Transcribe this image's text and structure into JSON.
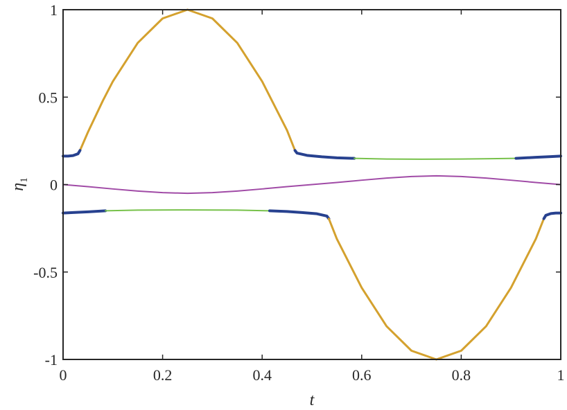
{
  "chart_data": {
    "type": "line",
    "xlabel": "t",
    "ylabel": {
      "symbol": "η",
      "subscript": "1"
    },
    "xlim": [
      0,
      1
    ],
    "ylim": [
      -1,
      1
    ],
    "xticks": [
      0,
      0.2,
      0.4,
      0.6,
      0.8,
      1
    ],
    "xtick_labels": [
      "0",
      "0.2",
      "0.4",
      "0.6",
      "0.8",
      "1"
    ],
    "yticks": [
      -1,
      -0.5,
      0,
      0.5,
      1
    ],
    "ytick_labels": [
      "-1",
      "-0.5",
      "0",
      "0.5",
      "1"
    ],
    "grid": false,
    "legend": "none",
    "colors": {
      "gold": "#d4a12e",
      "blue": "#27418f",
      "green": "#77c14a",
      "purple": "#a04aa6",
      "axis": "#262626"
    },
    "series": [
      {
        "color": "gold",
        "width": 3,
        "points": [
          [
            0.034,
            0.195
          ],
          [
            0.05,
            0.3
          ],
          [
            0.08,
            0.48
          ],
          [
            0.1,
            0.59
          ],
          [
            0.15,
            0.81
          ],
          [
            0.2,
            0.95
          ],
          [
            0.25,
            1.0
          ],
          [
            0.3,
            0.95
          ],
          [
            0.35,
            0.81
          ],
          [
            0.4,
            0.59
          ],
          [
            0.45,
            0.31
          ],
          [
            0.466,
            0.195
          ]
        ]
      },
      {
        "color": "blue",
        "width": 4,
        "points": [
          [
            0,
            0.163
          ],
          [
            0.01,
            0.163
          ],
          [
            0.02,
            0.166
          ],
          [
            0.03,
            0.176
          ],
          [
            0.034,
            0.195
          ]
        ]
      },
      {
        "color": "blue",
        "width": 4,
        "points": [
          [
            0.466,
            0.195
          ],
          [
            0.47,
            0.18
          ],
          [
            0.49,
            0.167
          ],
          [
            0.52,
            0.159
          ],
          [
            0.55,
            0.153
          ],
          [
            0.585,
            0.15
          ]
        ]
      },
      {
        "color": "green",
        "width": 2,
        "points": [
          [
            0.585,
            0.15
          ],
          [
            0.65,
            0.146
          ],
          [
            0.72,
            0.145
          ],
          [
            0.8,
            0.146
          ],
          [
            0.86,
            0.148
          ],
          [
            0.91,
            0.15
          ]
        ]
      },
      {
        "color": "blue",
        "width": 4,
        "points": [
          [
            0.91,
            0.15
          ],
          [
            0.95,
            0.156
          ],
          [
            0.98,
            0.16
          ],
          [
            1.0,
            0.163
          ]
        ]
      },
      {
        "color": "purple",
        "width": 2,
        "points": [
          [
            0,
            0
          ],
          [
            0.05,
            -0.012
          ],
          [
            0.1,
            -0.025
          ],
          [
            0.15,
            -0.037
          ],
          [
            0.2,
            -0.046
          ],
          [
            0.25,
            -0.05
          ],
          [
            0.3,
            -0.046
          ],
          [
            0.35,
            -0.037
          ],
          [
            0.4,
            -0.025
          ],
          [
            0.45,
            -0.012
          ],
          [
            0.5,
            0
          ],
          [
            0.55,
            0.012
          ],
          [
            0.6,
            0.025
          ],
          [
            0.65,
            0.037
          ],
          [
            0.7,
            0.046
          ],
          [
            0.75,
            0.05
          ],
          [
            0.8,
            0.046
          ],
          [
            0.85,
            0.037
          ],
          [
            0.9,
            0.025
          ],
          [
            0.95,
            0.012
          ],
          [
            1.0,
            0
          ]
        ]
      },
      {
        "color": "blue",
        "width": 4,
        "points": [
          [
            0,
            -0.163
          ],
          [
            0.02,
            -0.16
          ],
          [
            0.05,
            -0.156
          ],
          [
            0.085,
            -0.15
          ]
        ]
      },
      {
        "color": "green",
        "width": 2,
        "points": [
          [
            0.085,
            -0.15
          ],
          [
            0.15,
            -0.146
          ],
          [
            0.25,
            -0.145
          ],
          [
            0.35,
            -0.146
          ],
          [
            0.415,
            -0.15
          ]
        ]
      },
      {
        "color": "blue",
        "width": 4,
        "points": [
          [
            0.415,
            -0.15
          ],
          [
            0.45,
            -0.154
          ],
          [
            0.48,
            -0.16
          ],
          [
            0.51,
            -0.167
          ],
          [
            0.53,
            -0.18
          ],
          [
            0.534,
            -0.195
          ]
        ]
      },
      {
        "color": "gold",
        "width": 3,
        "points": [
          [
            0.534,
            -0.195
          ],
          [
            0.55,
            -0.31
          ],
          [
            0.6,
            -0.59
          ],
          [
            0.65,
            -0.81
          ],
          [
            0.7,
            -0.95
          ],
          [
            0.75,
            -1.0
          ],
          [
            0.8,
            -0.95
          ],
          [
            0.85,
            -0.81
          ],
          [
            0.9,
            -0.59
          ],
          [
            0.95,
            -0.31
          ],
          [
            0.966,
            -0.195
          ]
        ]
      },
      {
        "color": "blue",
        "width": 4,
        "points": [
          [
            0.966,
            -0.195
          ],
          [
            0.97,
            -0.176
          ],
          [
            0.98,
            -0.166
          ],
          [
            0.99,
            -0.163
          ],
          [
            1.0,
            -0.163
          ]
        ]
      }
    ]
  }
}
